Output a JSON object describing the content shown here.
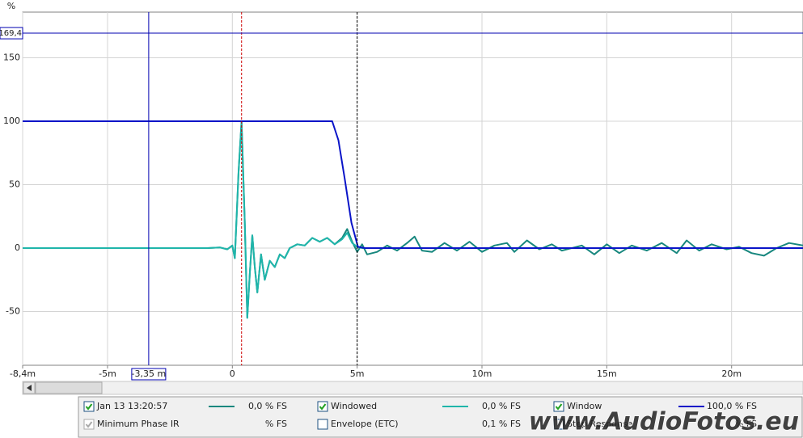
{
  "chart_data": {
    "type": "line",
    "y_axis_label": "%",
    "xlim": [
      -8.4,
      22.86
    ],
    "ylim": [
      -92.4,
      186
    ],
    "xticks": [
      {
        "value": -8.4,
        "label": "-8,4m"
      },
      {
        "value": -5,
        "label": "-5m"
      },
      0,
      {
        "value": 5,
        "label": "5m"
      },
      {
        "value": 10,
        "label": "10m"
      },
      {
        "value": 15,
        "label": "15m"
      },
      {
        "value": 20,
        "label": "20m"
      }
    ],
    "yticks": [
      -50,
      0,
      50,
      100,
      150
    ],
    "grid": true,
    "series": [
      {
        "name": "Jan 13 13:20:57",
        "color": "#17877e",
        "readout": "0,0 % FS",
        "checked": true,
        "x": [
          -8.4,
          -1,
          -0.5,
          -0.2,
          0,
          0.1,
          0.25,
          0.37,
          0.5,
          0.6,
          0.7,
          0.8,
          0.9,
          1.0,
          1.15,
          1.3,
          1.5,
          1.7,
          1.9,
          2.1,
          2.3,
          2.6,
          2.9,
          3.2,
          3.5,
          3.8,
          4.1,
          4.4,
          4.6,
          4.8,
          5.0,
          5.2,
          5.4,
          5.8,
          6.2,
          6.6,
          7.0,
          7.3,
          7.6,
          8.0,
          8.5,
          9.0,
          9.5,
          10.0,
          10.5,
          11.0,
          11.3,
          11.8,
          12.3,
          12.8,
          13.2,
          14.0,
          14.5,
          15.0,
          15.5,
          16.0,
          16.6,
          17.2,
          17.8,
          18.2,
          18.7,
          19.2,
          19.8,
          20.3,
          20.8,
          21.3,
          21.8,
          22.3,
          22.86
        ],
        "values": [
          0,
          0,
          0.5,
          -1,
          2,
          -8,
          60,
          100,
          20,
          -55,
          -20,
          10,
          -15,
          -35,
          -5,
          -25,
          -10,
          -15,
          -5,
          -8,
          0,
          3,
          2,
          8,
          5,
          8,
          3,
          8,
          15,
          5,
          -3,
          3,
          -5,
          -3,
          2,
          -2,
          4,
          9,
          -2,
          -3,
          4,
          -2,
          5,
          -3,
          2,
          4,
          -3,
          6,
          -1,
          3,
          -2,
          2,
          -5,
          3,
          -4,
          2,
          -2,
          4,
          -4,
          6,
          -2,
          3,
          -1,
          1,
          -4,
          -6,
          0,
          4,
          2
        ]
      },
      {
        "name": "Windowed",
        "color": "#1fb5aa",
        "readout": "0,0 % FS",
        "checked": true,
        "x": [
          -8.4,
          -1,
          -0.5,
          -0.2,
          0,
          0.1,
          0.25,
          0.37,
          0.5,
          0.6,
          0.7,
          0.8,
          0.9,
          1.0,
          1.15,
          1.3,
          1.5,
          1.7,
          1.9,
          2.1,
          2.3,
          2.6,
          2.9,
          3.2,
          3.5,
          3.8,
          4.1,
          4.4,
          4.6,
          4.8,
          5.0,
          5.2,
          22.86
        ],
        "values": [
          0,
          0,
          0.5,
          -1,
          2,
          -8,
          60,
          100,
          20,
          -55,
          -20,
          10,
          -15,
          -35,
          -5,
          -25,
          -10,
          -15,
          -5,
          -8,
          0,
          3,
          2,
          8,
          5,
          8,
          3,
          7,
          12,
          4,
          1,
          0,
          0
        ]
      },
      {
        "name": "Window",
        "color": "#0a14c8",
        "readout": "100,0 % FS",
        "checked": true,
        "x": [
          -8.4,
          4.0,
          4.25,
          4.5,
          4.77,
          5.03,
          5.3,
          22.86
        ],
        "values": [
          100,
          100,
          85,
          55,
          20,
          1,
          0,
          0
        ]
      }
    ],
    "legend_extra": [
      {
        "label": "Minimum Phase IR",
        "readout": "% FS",
        "checked": true,
        "enabled": false
      },
      {
        "label": "Envelope (ETC)",
        "readout": "0,1 % FS",
        "checked": false,
        "enabled": true
      },
      {
        "label": "Step Response",
        "readout": "% FS",
        "checked": false,
        "enabled": true
      }
    ],
    "markers": [
      {
        "x": 0.37,
        "color": "#cc0000"
      },
      {
        "x": 5.0,
        "color": "#000000"
      }
    ],
    "cursor": {
      "x": {
        "value": -3.35,
        "label": "-3,35 m"
      },
      "y": {
        "value": 169.4,
        "label": "169,4"
      },
      "color": "#0000b0"
    },
    "watermark": "www.AudioFotos.eu"
  }
}
